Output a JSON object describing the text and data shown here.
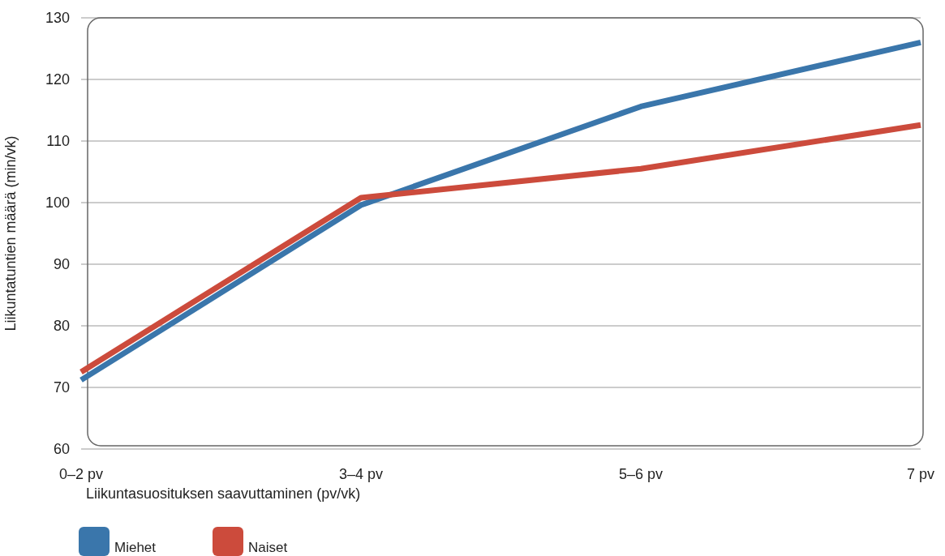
{
  "chart_data": {
    "type": "line",
    "xlabel": "Liikuntasuosituksen saavuttaminen (pv/vk)",
    "ylabel": "Liikuntatuntien määrä (min/vk)",
    "categories": [
      "0–2 pv",
      "3–4 pv",
      "5–6 pv",
      "7 pv"
    ],
    "series": [
      {
        "name": "Miehet",
        "color": "#3a76ab",
        "values": [
          71.2,
          99.6,
          115.6,
          126
        ]
      },
      {
        "name": "Naiset",
        "color": "#cc4b3c",
        "values": [
          72.5,
          100.8,
          105.5,
          112.6
        ]
      }
    ],
    "ylim": [
      60,
      130
    ],
    "yticks": [
      60,
      70,
      80,
      90,
      100,
      110,
      120,
      130
    ],
    "grid": "y",
    "legend": "bottom left",
    "marker": "none",
    "line_style": "solid"
  }
}
